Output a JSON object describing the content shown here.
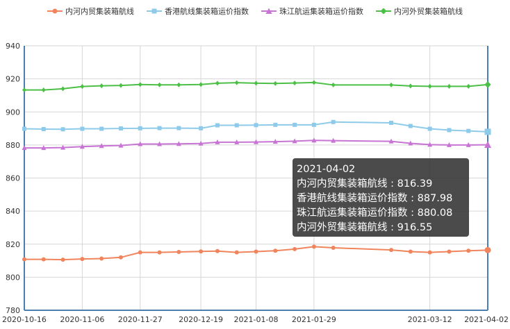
{
  "chart_data": {
    "type": "line",
    "title": "",
    "xlabel": "",
    "ylabel": "",
    "ylim": [
      780,
      940
    ],
    "yticks": [
      780,
      800,
      820,
      840,
      860,
      880,
      900,
      920,
      940
    ],
    "xtick_labels": [
      "2020-10-16",
      "2020-11-06",
      "2020-11-27",
      "2020-12-19",
      "2021-01-08",
      "2021-01-29",
      "2021-03-12",
      "2021-04-02"
    ],
    "grid": true,
    "legend_position": "top",
    "x": [
      "2020-10-16",
      "2020-10-23",
      "2020-10-30",
      "2020-11-06",
      "2020-11-13",
      "2020-11-20",
      "2020-11-27",
      "2020-12-04",
      "2020-12-11",
      "2020-12-19",
      "2020-12-25",
      "2021-01-01",
      "2021-01-08",
      "2021-01-15",
      "2021-01-22",
      "2021-01-29",
      "2021-02-05",
      "2021-02-26",
      "2021-03-05",
      "2021-03-12",
      "2021-03-19",
      "2021-03-26",
      "2021-04-02"
    ],
    "series": [
      {
        "name": "内河内贸集装箱航线",
        "color": "#f0845c",
        "marker": "circle",
        "values": [
          810.8,
          810.8,
          810.6,
          811.0,
          811.3,
          812.0,
          815.0,
          815.0,
          815.3,
          815.6,
          815.8,
          815.0,
          815.5,
          816.0,
          817.0,
          818.5,
          817.8,
          816.5,
          815.5,
          815.0,
          815.5,
          816.0,
          816.39
        ]
      },
      {
        "name": "香港航线集装箱运价指数",
        "color": "#8ecbea",
        "marker": "square",
        "values": [
          889.8,
          889.6,
          889.5,
          889.8,
          889.8,
          890.0,
          890.1,
          890.2,
          890.2,
          890.1,
          891.9,
          891.9,
          892.0,
          892.2,
          892.2,
          892.2,
          893.9,
          893.4,
          891.5,
          889.8,
          889.0,
          888.5,
          887.98
        ]
      },
      {
        "name": "珠江航运集装箱运价指数",
        "color": "#c874d4",
        "marker": "triangle",
        "values": [
          878.2,
          878.2,
          878.4,
          879.0,
          879.4,
          879.7,
          880.6,
          880.6,
          880.7,
          880.9,
          881.7,
          881.7,
          881.8,
          882.0,
          882.3,
          882.8,
          882.6,
          882.2,
          881.0,
          880.2,
          880.0,
          880.0,
          880.08
        ]
      },
      {
        "name": "内河外贸集装箱航线",
        "color": "#4bbf46",
        "marker": "diamond",
        "values": [
          913.3,
          913.3,
          914.0,
          915.4,
          915.8,
          916.0,
          916.6,
          916.4,
          916.4,
          916.6,
          917.4,
          917.7,
          917.4,
          917.2,
          917.5,
          917.8,
          916.3,
          916.3,
          915.7,
          915.5,
          915.5,
          915.5,
          916.55
        ]
      }
    ]
  },
  "tooltip": {
    "date": "2021-04-02",
    "lines": [
      "内河内贸集装箱航线 : 816.39",
      "香港航线集装箱运价指数 : 887.98",
      "珠江航运集装箱运价指数 : 880.08",
      "内河外贸集装箱航线 : 916.55"
    ]
  }
}
